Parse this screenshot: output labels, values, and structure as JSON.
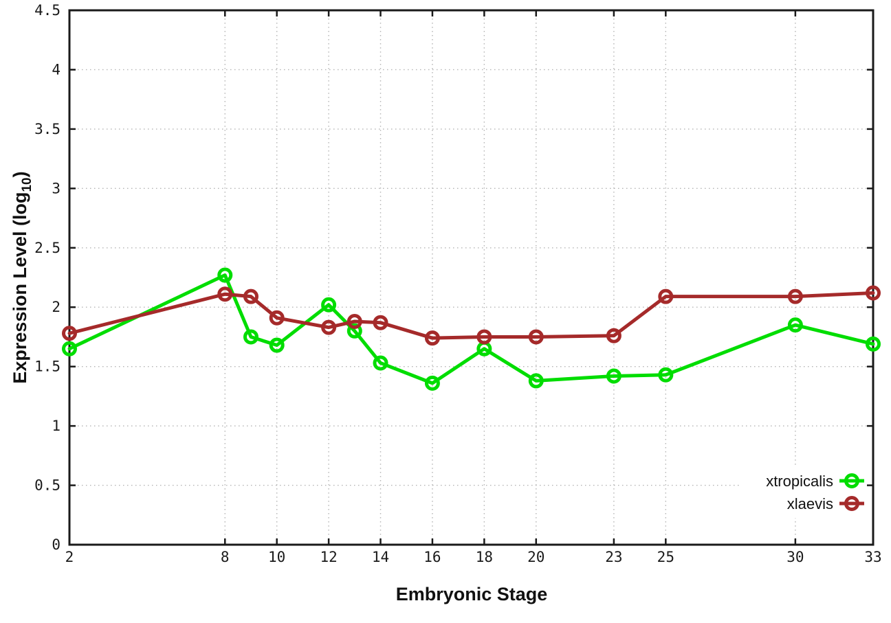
{
  "page": {
    "background": "#ffffff",
    "border_color": "#1a1a1a",
    "grid_color": "#b3b3b3",
    "text_color": "#111111"
  },
  "chart_data": {
    "type": "line",
    "title": "",
    "xlabel": "Embryonic Stage",
    "ylabel": {
      "main": "Expression Level (log",
      "sub": "10",
      "close": ")"
    },
    "xlim": [
      2,
      33
    ],
    "ylim": [
      0,
      4.5
    ],
    "grid": true,
    "grid_style": "dotted",
    "legend_position": "inside-bottom-right",
    "marker": "open-circle",
    "x": [
      2,
      8,
      9,
      10,
      12,
      13,
      14,
      16,
      18,
      20,
      23,
      25,
      30,
      33
    ],
    "xticks": [
      {
        "value": 2,
        "label": "2"
      },
      {
        "value": 8,
        "label": "8"
      },
      {
        "value": 10,
        "label": "10"
      },
      {
        "value": 12,
        "label": "12"
      },
      {
        "value": 14,
        "label": "14"
      },
      {
        "value": 16,
        "label": "16"
      },
      {
        "value": 18,
        "label": "18"
      },
      {
        "value": 20,
        "label": "20"
      },
      {
        "value": 23,
        "label": "23"
      },
      {
        "value": 25,
        "label": "25"
      },
      {
        "value": 30,
        "label": "30"
      },
      {
        "value": 33,
        "label": "33"
      }
    ],
    "yticks": [
      {
        "value": 0,
        "label": "0"
      },
      {
        "value": 0.5,
        "label": "0.5"
      },
      {
        "value": 1,
        "label": "1"
      },
      {
        "value": 1.5,
        "label": "1.5"
      },
      {
        "value": 2,
        "label": "2"
      },
      {
        "value": 2.5,
        "label": "2.5"
      },
      {
        "value": 3,
        "label": "3"
      },
      {
        "value": 3.5,
        "label": "3.5"
      },
      {
        "value": 4,
        "label": "4"
      },
      {
        "value": 4.5,
        "label": "4.5"
      }
    ],
    "series": [
      {
        "name": "xtropicalis",
        "color": "#00dd00",
        "marker": "open-circle",
        "values": [
          1.65,
          2.27,
          1.75,
          1.68,
          2.02,
          1.8,
          1.53,
          1.36,
          1.65,
          1.38,
          1.42,
          1.43,
          1.85,
          1.69
        ]
      },
      {
        "name": "xlaevis",
        "color": "#a52a2a",
        "marker": "open-circle",
        "values": [
          1.78,
          2.11,
          2.09,
          1.91,
          1.83,
          1.88,
          1.87,
          1.74,
          1.75,
          1.75,
          1.76,
          2.09,
          2.09,
          2.12
        ]
      }
    ]
  }
}
